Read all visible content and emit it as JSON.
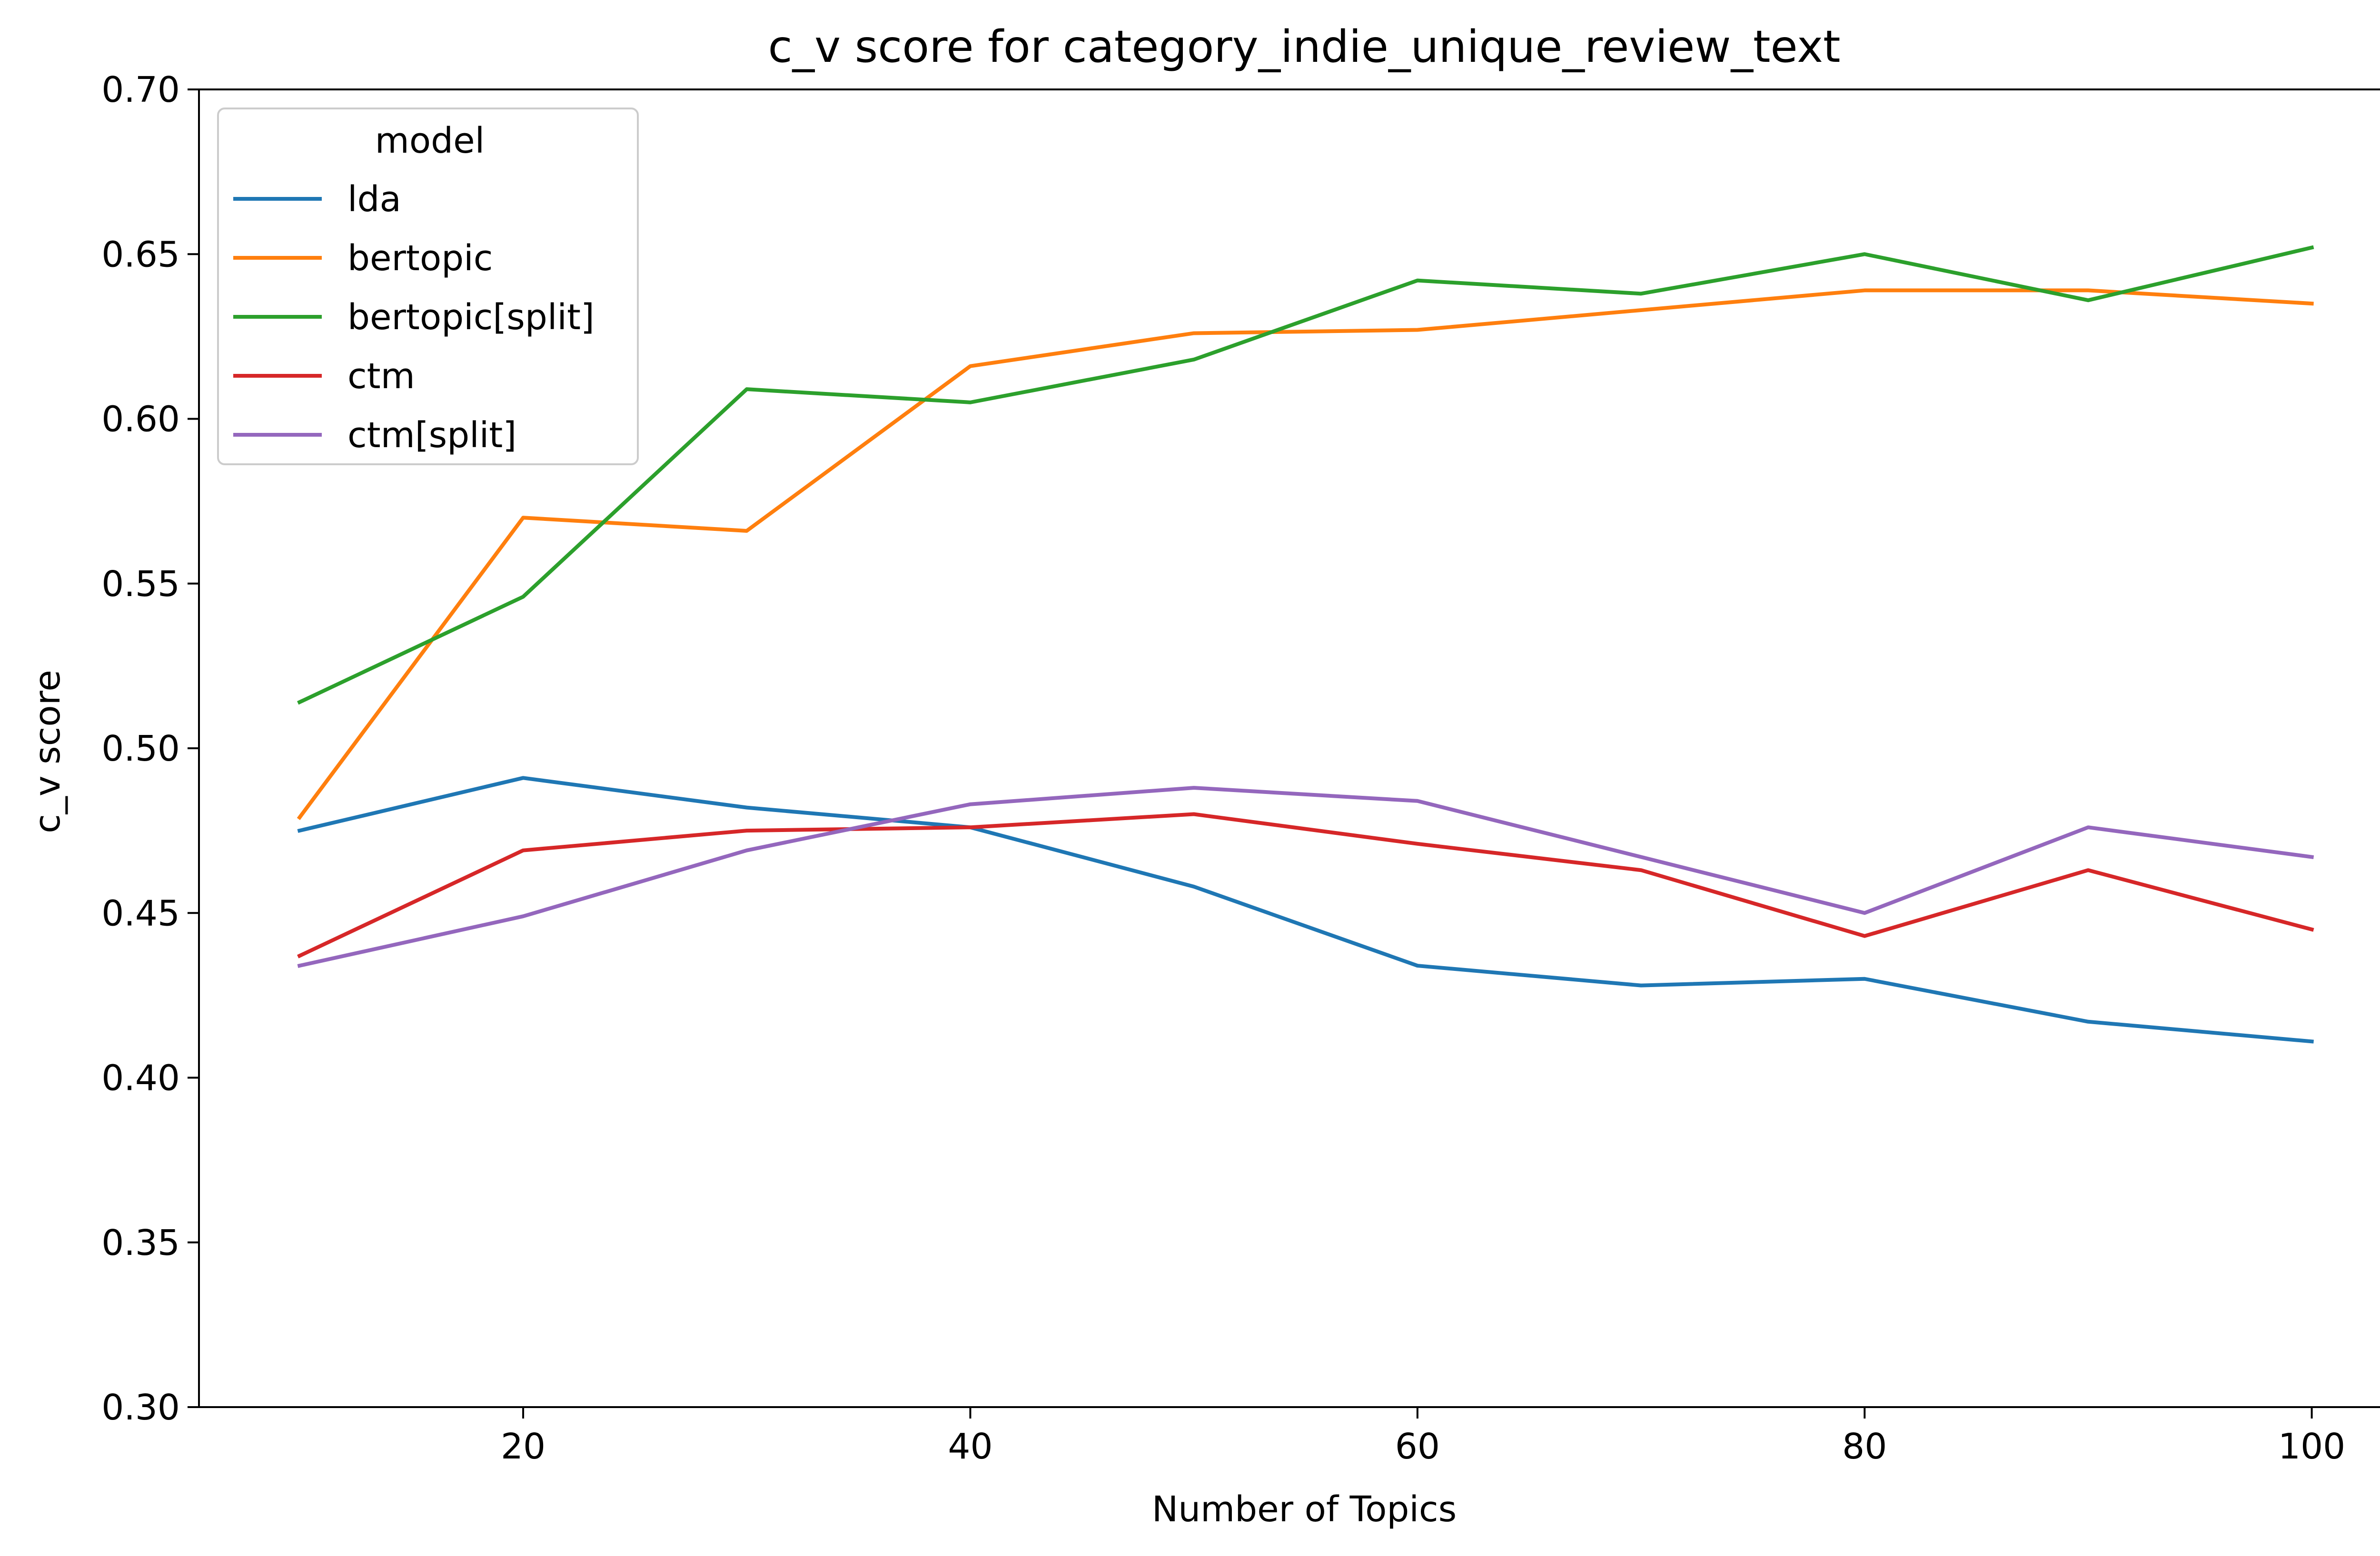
{
  "chart_data": {
    "type": "line",
    "title": "c_v score for category_indie_unique_review_text",
    "xlabel": "Number of Topics",
    "ylabel": "c_v score",
    "x": [
      10,
      20,
      30,
      40,
      50,
      60,
      70,
      80,
      90,
      100
    ],
    "xlim": [
      5.5,
      104.5
    ],
    "ylim": [
      0.3,
      0.7
    ],
    "xticks": [
      "20",
      "40",
      "60",
      "80",
      "100"
    ],
    "yticks": [
      "0.30",
      "0.35",
      "0.40",
      "0.45",
      "0.50",
      "0.55",
      "0.60",
      "0.65",
      "0.70"
    ],
    "grid": false,
    "legend": {
      "title": "model",
      "position": "top-left"
    },
    "series": [
      {
        "name": "lda",
        "color": "#1f77b4",
        "values": [
          0.475,
          0.491,
          0.482,
          0.476,
          0.458,
          0.434,
          0.428,
          0.43,
          0.417,
          0.411
        ]
      },
      {
        "name": "bertopic",
        "color": "#ff7f0e",
        "values": [
          0.479,
          0.57,
          0.566,
          0.616,
          0.626,
          0.627,
          0.633,
          0.639,
          0.639,
          0.635
        ]
      },
      {
        "name": "bertopic[split]",
        "color": "#2ca02c",
        "values": [
          0.514,
          0.546,
          0.609,
          0.605,
          0.618,
          0.642,
          0.638,
          0.65,
          0.636,
          0.652
        ]
      },
      {
        "name": "ctm",
        "color": "#d62728",
        "values": [
          0.437,
          0.469,
          0.475,
          0.476,
          0.48,
          0.471,
          0.463,
          0.443,
          0.463,
          0.445
        ]
      },
      {
        "name": "ctm[split]",
        "color": "#9467bd",
        "values": [
          0.434,
          0.449,
          0.469,
          0.483,
          0.488,
          0.484,
          0.467,
          0.45,
          0.476,
          0.467
        ]
      }
    ]
  }
}
